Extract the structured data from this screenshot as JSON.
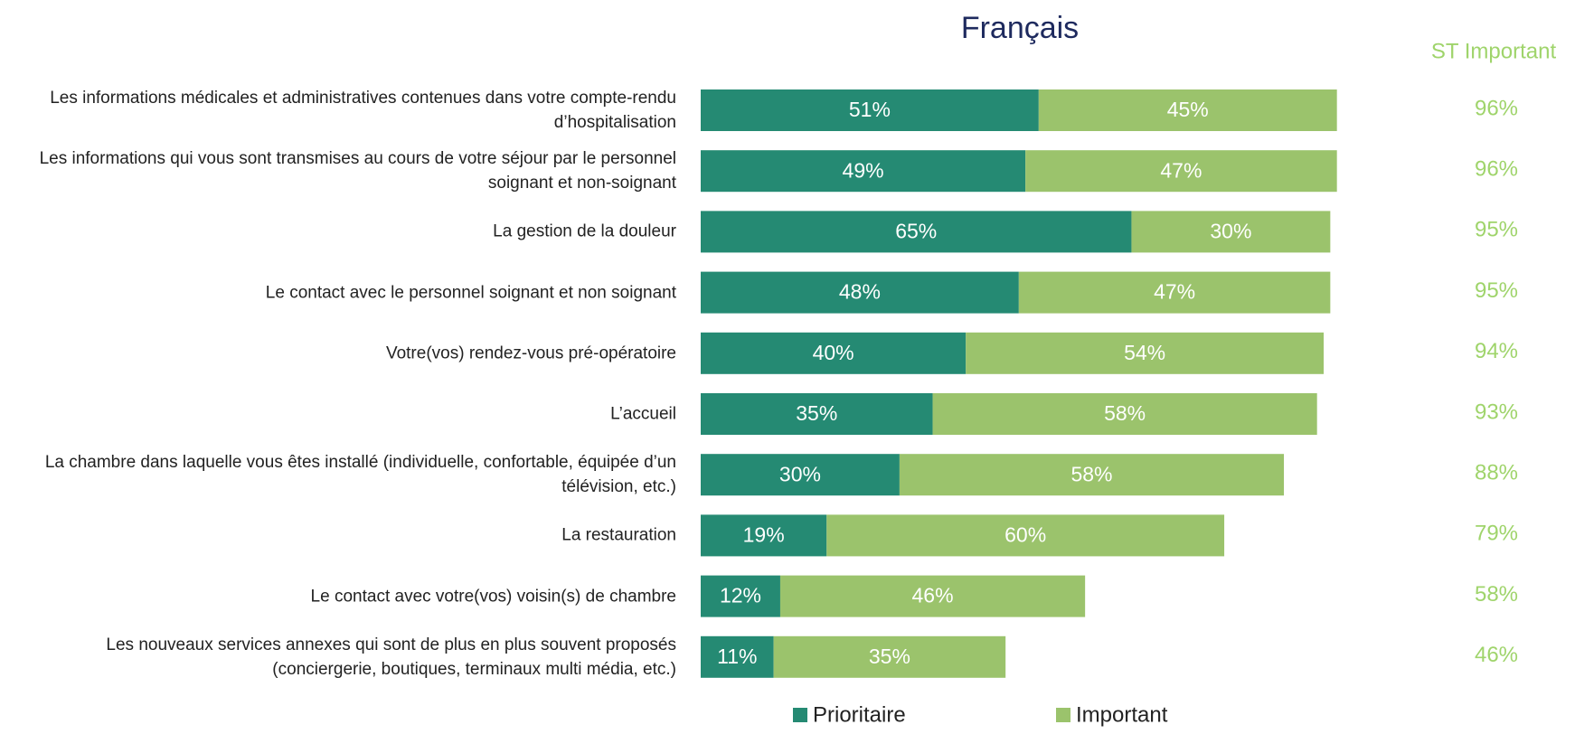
{
  "chart_data": {
    "type": "stacked_barh",
    "title": "Français",
    "categories": [
      "Les informations médicales et administratives contenues dans votre compte-rendu d’hospitalisation",
      "Les informations qui vous sont transmises au cours de votre séjour par le personnel soignant et non-soignant",
      "La gestion de la douleur",
      "Le contact avec le personnel soignant et non soignant",
      "Votre(vos) rendez-vous pré-opératoire",
      "L’accueil",
      "La chambre dans laquelle vous êtes installé (individuelle, confortable, équipée d’un télévision, etc.)",
      "La restauration",
      "Le contact avec votre(vos) voisin(s) de chambre",
      "Les nouveaux services annexes qui sont de plus en plus souvent proposés (conciergerie,  boutiques, terminaux multi média, etc.)"
    ],
    "series": [
      {
        "name": "Prioritaire",
        "color": "#258a73",
        "values": [
          51,
          49,
          65,
          48,
          40,
          35,
          30,
          19,
          12,
          11
        ],
        "value_labels": [
          "51%",
          "49%",
          "65%",
          "48%",
          "40%",
          "35%",
          "30%",
          "19%",
          "12%",
          "11%"
        ]
      },
      {
        "name": "Important",
        "color": "#9bc36c",
        "values": [
          45,
          47,
          30,
          47,
          54,
          58,
          58,
          60,
          46,
          35
        ],
        "value_labels": [
          "45%",
          "47%",
          "30%",
          "47%",
          "54%",
          "58%",
          "58%",
          "60%",
          "46%",
          "35%"
        ]
      }
    ],
    "st_important": {
      "label": "ST Important",
      "color": "#9fd46b",
      "values": [
        96,
        96,
        95,
        95,
        94,
        93,
        88,
        79,
        58,
        46
      ],
      "value_labels": [
        "96%",
        "96%",
        "95%",
        "95%",
        "94%",
        "93%",
        "88%",
        "79%",
        "58%",
        "46%"
      ]
    },
    "legend": "bottom"
  }
}
